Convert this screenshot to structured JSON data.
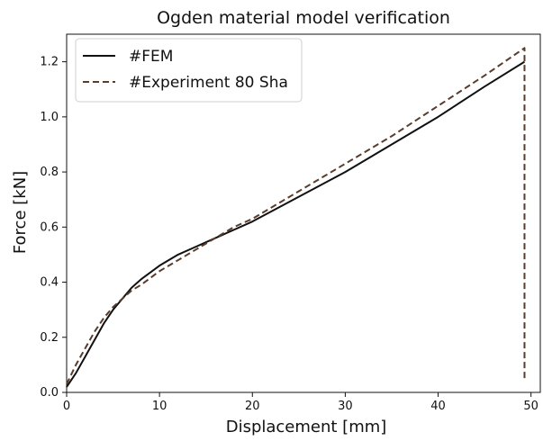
{
  "chart_data": {
    "type": "line",
    "title": "Ogden material model verification",
    "xlabel": "Displacement [mm]",
    "ylabel": "Force [kN]",
    "xlim": [
      0,
      51
    ],
    "ylim": [
      0,
      1.3
    ],
    "x_ticks": [
      0,
      10,
      20,
      30,
      40,
      50
    ],
    "y_ticks": [
      0.0,
      0.2,
      0.4,
      0.6,
      0.8,
      1.0,
      1.2
    ],
    "x_tick_labels": [
      "0",
      "10",
      "20",
      "30",
      "40",
      "50"
    ],
    "y_tick_labels": [
      "0.0",
      "0.2",
      "0.4",
      "0.6",
      "0.8",
      "1.0",
      "1.2"
    ],
    "grid": false,
    "legend_position": "top-left",
    "series": [
      {
        "name": "#FEM",
        "color": "#111111",
        "style": "solid",
        "x": [
          0,
          1,
          2,
          3,
          4,
          5,
          6,
          7,
          8,
          10,
          12,
          14,
          16,
          18,
          20,
          25,
          30,
          35,
          40,
          45,
          49.3
        ],
        "y": [
          0.02,
          0.07,
          0.13,
          0.19,
          0.25,
          0.3,
          0.34,
          0.38,
          0.41,
          0.46,
          0.5,
          0.53,
          0.56,
          0.59,
          0.62,
          0.71,
          0.8,
          0.9,
          1.0,
          1.11,
          1.2
        ]
      },
      {
        "name": "#Experiment 80 Sha",
        "color": "#5a3c2c",
        "style": "dashed",
        "x": [
          0,
          1,
          2,
          3,
          4,
          5,
          6,
          7,
          8,
          10,
          12,
          14,
          16,
          18,
          20,
          25,
          30,
          35,
          40,
          45,
          49.3,
          49.3
        ],
        "y": [
          0.03,
          0.1,
          0.16,
          0.22,
          0.27,
          0.31,
          0.34,
          0.37,
          0.39,
          0.44,
          0.48,
          0.52,
          0.56,
          0.6,
          0.63,
          0.73,
          0.83,
          0.93,
          1.04,
          1.15,
          1.25,
          0.05
        ]
      }
    ]
  }
}
